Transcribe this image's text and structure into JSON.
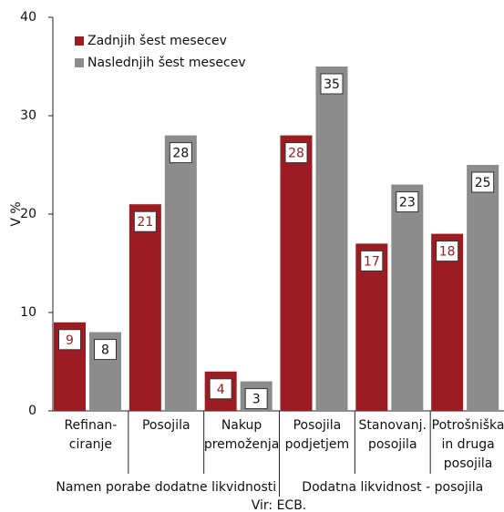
{
  "chart_data": {
    "type": "bar",
    "y_label": "V %",
    "categories": [
      [
        "Refinan-",
        "ciranje"
      ],
      [
        "Posojila"
      ],
      [
        "Nakup",
        "premoženja"
      ],
      [
        "Posojila",
        "podjetjem"
      ],
      [
        "Stanovanj.",
        "posojila"
      ],
      [
        "Potrošniška",
        "in druga",
        "posojila"
      ]
    ],
    "groups": [
      "Namen porabe dodatne likvidnosti",
      "Dodatna likvidnost - posojila"
    ],
    "source": "Vir: ECB.",
    "series": [
      {
        "name": "Zadnjih šest mesecev",
        "color": "#9b1c22",
        "values": [
          9,
          21,
          4,
          28,
          17,
          18
        ]
      },
      {
        "name": "Naslednjih šest mesecev",
        "color": "#8c8c8c",
        "values": [
          8,
          28,
          3,
          35,
          23,
          25
        ]
      }
    ],
    "ylim": [
      0,
      40
    ],
    "yticks": [
      0,
      10,
      20,
      30,
      40
    ],
    "grid": false,
    "legend": "top-left"
  }
}
